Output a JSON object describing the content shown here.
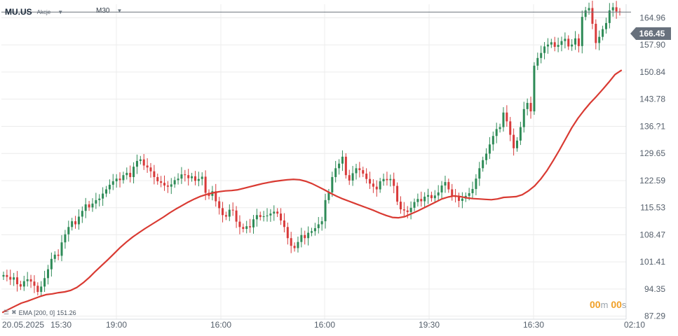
{
  "header": {
    "symbol": "MU.US",
    "asset_type": "Akcje",
    "timeframe": "M30"
  },
  "price_tag": "166.45",
  "ema_legend": {
    "label": "EMA [200, 0]",
    "value": "151.26"
  },
  "countdown": {
    "minutes": "00",
    "m_unit": "m",
    "seconds": "00",
    "s_unit": "s"
  },
  "colors": {
    "up": "#2e8b57",
    "down": "#d83a3a",
    "ema": "#d93a32",
    "grid": "#ececec",
    "price_line": "#6b737c"
  },
  "chart_data": {
    "type": "candlestick",
    "y_axis": {
      "ticks": [
        87.29,
        94.35,
        101.41,
        108.47,
        115.53,
        122.59,
        129.65,
        136.71,
        143.78,
        150.84,
        157.9,
        164.96
      ],
      "tick_labels": [
        "87.29",
        "94.35",
        "101.41",
        "108.47",
        "115.53",
        "122.59",
        "129.65",
        "136.?1",
        "143.78",
        "150.84",
        "157.90",
        "164.96"
      ],
      "range": [
        86.5,
        168.5
      ]
    },
    "x_axis": {
      "labels": [
        "20.05.2025",
        "15:30",
        "19:00",
        "16:00",
        "16:00",
        "19:30",
        "16:30",
        "02:10"
      ],
      "range": [
        0,
        100
      ]
    },
    "last_price": 166.45,
    "close": [
      98.0,
      97.5,
      96.8,
      97.4,
      95.6,
      95.0,
      96.4,
      96.9,
      96.3,
      95.2,
      93.6,
      95.0,
      97.2,
      99.5,
      102.2,
      103.3,
      103.0,
      106.5,
      108.6,
      110.5,
      112.0,
      111.2,
      113.2,
      114.7,
      116.4,
      115.6,
      116.6,
      117.5,
      117.9,
      119.2,
      120.3,
      121.5,
      122.4,
      123.1,
      122.7,
      124.0,
      124.6,
      123.5,
      126.2,
      127.7,
      128.1,
      126.5,
      126.0,
      125.0,
      123.5,
      122.4,
      122.0,
      121.3,
      121.0,
      121.6,
      122.7,
      123.1,
      124.2,
      124.0,
      123.2,
      123.7,
      122.5,
      123.0,
      123.6,
      119.4,
      118.6,
      119.8,
      117.2,
      115.4,
      113.6,
      113.2,
      115.0,
      114.8,
      111.9,
      110.5,
      110.0,
      110.7,
      110.4,
      112.5,
      113.6,
      113.1,
      113.3,
      113.5,
      114.0,
      114.5,
      114.0,
      112.2,
      110.5,
      107.6,
      105.6,
      105.0,
      106.6,
      108.4,
      107.6,
      109.0,
      109.4,
      110.2,
      111.2,
      112.0,
      117.5,
      119.5,
      123.5,
      125.8,
      127.0,
      128.8,
      124.0,
      122.6,
      124.5,
      125.8,
      125.3,
      124.4,
      123.0,
      121.8,
      121.0,
      120.3,
      122.4,
      123.0,
      122.7,
      123.0,
      121.2,
      117.1,
      115.1,
      114.8,
      114.4,
      115.5,
      117.0,
      117.8,
      117.2,
      118.4,
      118.8,
      118.0,
      118.7,
      119.5,
      121.3,
      122.2,
      120.3,
      118.5,
      118.3,
      117.3,
      117.9,
      118.6,
      119.3,
      120.4,
      123.1,
      125.8,
      127.9,
      129.6,
      132.0,
      134.2,
      136.0,
      136.5,
      140.3,
      138.0,
      134.5,
      131.0,
      133.0,
      136.5,
      141.2,
      142.8,
      140.6,
      152.5,
      154.5,
      155.8,
      157.5,
      158.0,
      158.6,
      157.4,
      157.9,
      158.9,
      159.5,
      157.5,
      158.0,
      159.6,
      157.6,
      165.2,
      166.9,
      167.5,
      163.4,
      158.4,
      160.0,
      162.0,
      163.6,
      166.9,
      167.7,
      166.6,
      166.45
    ],
    "series": [
      {
        "name": "EMA",
        "values": [
          88.3,
          89.1,
          89.9,
          90.7,
          91.2,
          91.8,
          92.4,
          92.9,
          93.1,
          93.4,
          93.6,
          94.0,
          94.8,
          96.0,
          97.4,
          99.0,
          100.5,
          102.0,
          103.6,
          105.2,
          106.6,
          107.9,
          109.0,
          110.1,
          111.1,
          112.1,
          113.1,
          114.2,
          115.2,
          116.1,
          117.0,
          117.8,
          118.5,
          119.0,
          119.4,
          119.7,
          119.9,
          120.0,
          120.2,
          120.6,
          121.0,
          121.4,
          121.8,
          122.1,
          122.4,
          122.6,
          122.8,
          122.9,
          122.8,
          122.4,
          121.8,
          121.0,
          120.2,
          119.3,
          118.5,
          117.8,
          117.2,
          116.6,
          116.0,
          115.4,
          114.8,
          114.1,
          113.5,
          113.0,
          112.9,
          113.2,
          113.9,
          114.6,
          115.4,
          116.2,
          117.0,
          117.8,
          118.3,
          118.6,
          118.4,
          118.1,
          117.9,
          117.8,
          117.7,
          117.6,
          117.8,
          118.2,
          118.3,
          118.4,
          118.9,
          119.9,
          121.2,
          123.0,
          125.2,
          127.8,
          130.5,
          133.4,
          136.3,
          138.8,
          140.9,
          142.8,
          144.5,
          146.3,
          148.2,
          150.2,
          151.26
        ]
      }
    ],
    "title": "",
    "xlabel": "",
    "ylabel": "",
    "grid": true
  }
}
